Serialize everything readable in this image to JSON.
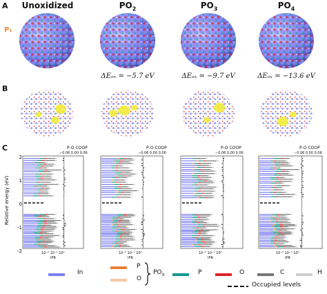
{
  "panels": {
    "A": "A",
    "B": "B",
    "C": "C"
  },
  "row_a": {
    "titles": [
      {
        "text": "Unoxidized",
        "sub": ""
      },
      {
        "text": "PO",
        "sub": "2"
      },
      {
        "text": "PO",
        "sub": "3"
      },
      {
        "text": "PO",
        "sub": "4"
      }
    ],
    "site_label": "P₁",
    "energies": [
      "ΔEₒₓ = −5.7 eV",
      "ΔEₒₓ = −9.7 eV",
      "ΔEₒₓ = −13.6 eV"
    ]
  },
  "row_c": {
    "ylabel": "Relative energy (eV)",
    "yticks": [
      "2",
      "1",
      "0",
      "-1",
      "-2"
    ],
    "ipr_label": "IPR",
    "ipr_ticks": "10⁻² 10⁻¹ 10⁰",
    "coop_title": "P-O COOP",
    "coop_ticks": "−0.06  0.00  0.06"
  },
  "colors": {
    "In": "#7b7ff0",
    "P_oxidized": "#e8823a",
    "O_oxidized": "#f5c9a8",
    "P": "#13958f",
    "O": "#d9252a",
    "C": "#777777",
    "H": "#cccccc"
  },
  "legend": {
    "in": "In",
    "p_ox": "P",
    "o_ox": "O",
    "pox": "PO",
    "pox_sub": "X",
    "p": "P",
    "o": "O",
    "c": "C",
    "h": "H",
    "occupied": "Occupied levels"
  }
}
